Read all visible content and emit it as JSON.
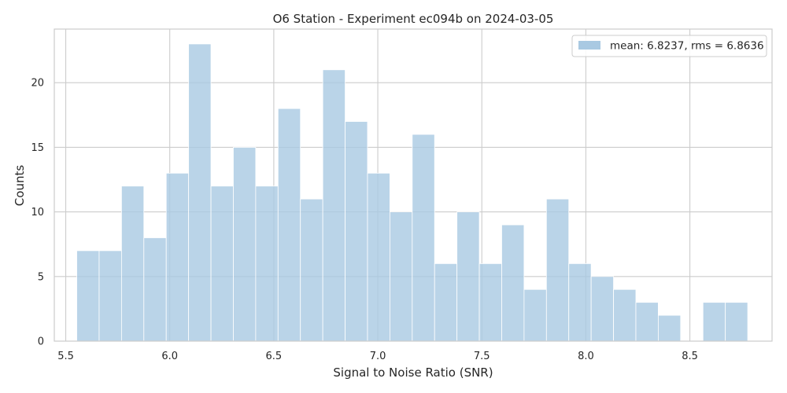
{
  "chart_data": {
    "type": "bar",
    "title": "O6 Station - Experiment ec094b on 2024-03-05",
    "xlabel": "Signal to Noise Ratio (SNR)",
    "ylabel": "Counts",
    "xlim": [
      5.445,
      8.895
    ],
    "ylim": [
      0,
      24.15
    ],
    "xticks": [
      5.5,
      6.0,
      6.5,
      7.0,
      7.5,
      8.0,
      8.5
    ],
    "xtick_labels": [
      "5.5",
      "6.0",
      "6.5",
      "7.0",
      "7.5",
      "8.0",
      "8.5"
    ],
    "yticks": [
      0,
      5,
      10,
      15,
      20
    ],
    "ytick_labels": [
      "0",
      "5",
      "10",
      "15",
      "20"
    ],
    "bin_start": 5.553,
    "bin_width": 0.1075,
    "values": [
      7,
      7,
      12,
      8,
      13,
      23,
      12,
      15,
      12,
      18,
      11,
      21,
      17,
      13,
      10,
      16,
      6,
      10,
      6,
      9,
      4,
      11,
      6,
      5,
      4,
      3,
      2,
      0,
      3,
      3
    ],
    "grid": true,
    "legend_position": "top-right",
    "legend": "mean: 6.8237, rms = 6.8636",
    "colors": {
      "bar": "#a9c9e2",
      "bar_edge": "#ffffff",
      "grid": "#cccccc",
      "text": "#262626",
      "background": "#ffffff"
    }
  }
}
